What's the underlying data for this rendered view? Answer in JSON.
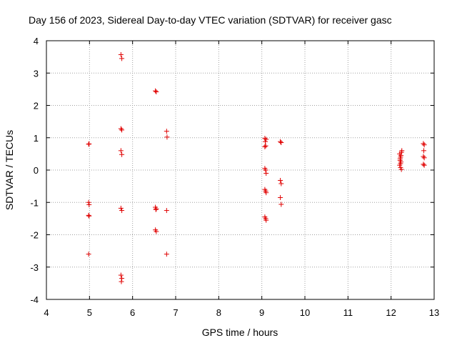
{
  "chart_data": {
    "type": "scatter",
    "title": "Day 156 of 2023, Sidereal Day-to-day VTEC variation (SDTVAR) for receiver gasc",
    "xlabel": "GPS time / hours",
    "ylabel": "SDTVAR / TECUs",
    "xlim": [
      4,
      13
    ],
    "ylim": [
      -4,
      4
    ],
    "xticks": [
      "4",
      "5",
      "6",
      "7",
      "8",
      "9",
      "10",
      "11",
      "12",
      "13"
    ],
    "yticks": [
      "4",
      "3",
      "2",
      "1",
      "0",
      "-1",
      "-2",
      "-3",
      "-4"
    ],
    "grid": true,
    "marker": "+",
    "series": [
      {
        "name": "SDTVAR",
        "color": "#e00000",
        "points": [
          [
            4.98,
            0.8
          ],
          [
            4.99,
            0.81
          ],
          [
            4.98,
            -1.0
          ],
          [
            4.99,
            -1.07
          ],
          [
            4.98,
            -1.4
          ],
          [
            4.99,
            -1.42
          ],
          [
            4.98,
            -2.6
          ],
          [
            5.73,
            3.57
          ],
          [
            5.75,
            3.45
          ],
          [
            5.73,
            1.28
          ],
          [
            5.75,
            1.24
          ],
          [
            5.73,
            0.6
          ],
          [
            5.75,
            0.48
          ],
          [
            5.73,
            -1.18
          ],
          [
            5.75,
            -1.25
          ],
          [
            5.73,
            -3.25
          ],
          [
            5.75,
            -3.35
          ],
          [
            5.74,
            -3.45
          ],
          [
            6.53,
            2.45
          ],
          [
            6.55,
            2.42
          ],
          [
            6.53,
            -1.15
          ],
          [
            6.55,
            -1.2
          ],
          [
            6.54,
            -1.22
          ],
          [
            6.53,
            -1.85
          ],
          [
            6.55,
            -1.9
          ],
          [
            6.79,
            1.2
          ],
          [
            6.8,
            1.02
          ],
          [
            6.79,
            -1.25
          ],
          [
            6.79,
            -2.6
          ],
          [
            9.07,
            0.98
          ],
          [
            9.1,
            0.95
          ],
          [
            9.08,
            0.88
          ],
          [
            9.09,
            0.75
          ],
          [
            9.07,
            0.72
          ],
          [
            9.07,
            0.05
          ],
          [
            9.09,
            0.0
          ],
          [
            9.1,
            -0.1
          ],
          [
            9.07,
            -0.6
          ],
          [
            9.09,
            -0.65
          ],
          [
            9.1,
            -0.7
          ],
          [
            9.07,
            -1.45
          ],
          [
            9.09,
            -1.5
          ],
          [
            9.1,
            -1.55
          ],
          [
            9.43,
            0.88
          ],
          [
            9.45,
            0.85
          ],
          [
            9.43,
            -0.32
          ],
          [
            9.45,
            -0.42
          ],
          [
            9.43,
            -0.85
          ],
          [
            9.45,
            -1.06
          ],
          [
            12.2,
            0.5
          ],
          [
            12.22,
            0.4
          ],
          [
            12.24,
            0.55
          ],
          [
            12.21,
            0.3
          ],
          [
            12.23,
            0.25
          ],
          [
            12.2,
            0.15
          ],
          [
            12.22,
            0.08
          ],
          [
            12.24,
            0.02
          ],
          [
            12.21,
            0.35
          ],
          [
            12.23,
            0.45
          ],
          [
            12.25,
            0.6
          ],
          [
            12.22,
            0.2
          ],
          [
            12.75,
            0.82
          ],
          [
            12.77,
            0.78
          ],
          [
            12.76,
            0.6
          ],
          [
            12.75,
            0.42
          ],
          [
            12.77,
            0.38
          ],
          [
            12.75,
            0.18
          ],
          [
            12.77,
            0.15
          ]
        ]
      }
    ]
  }
}
